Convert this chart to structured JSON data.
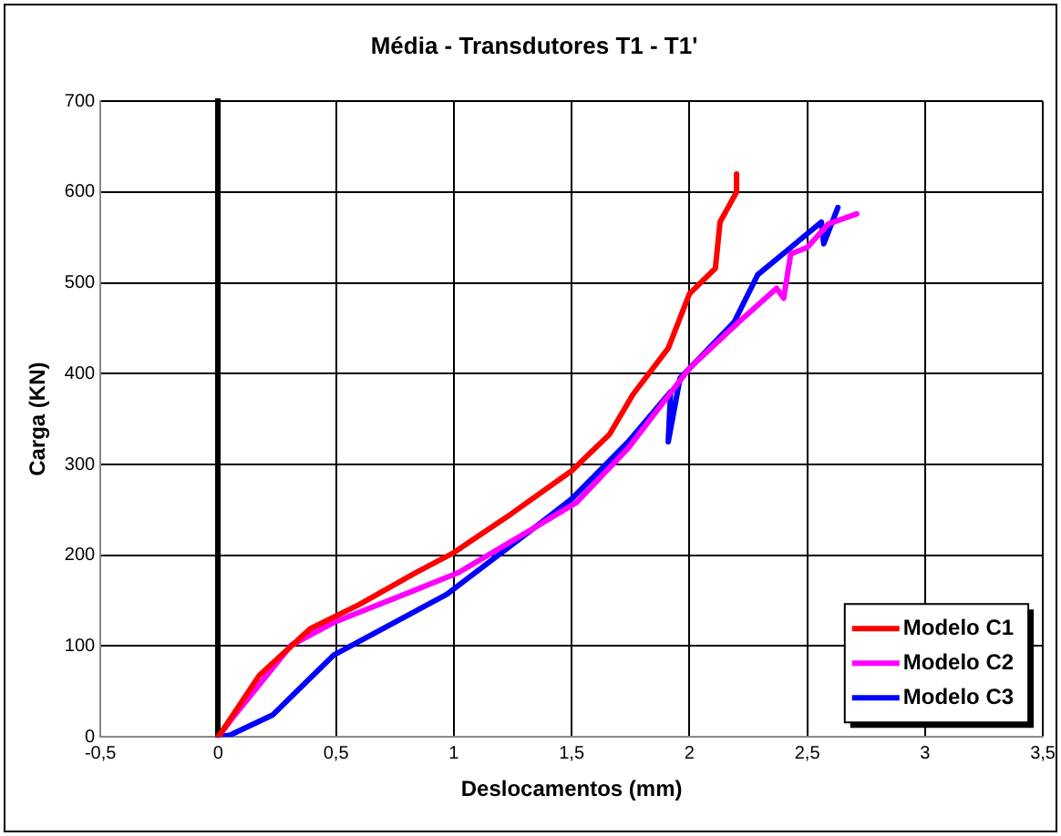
{
  "chart_data": {
    "type": "line",
    "title": "Média - Transdutores T1 - T1'",
    "xlabel": "Deslocamentos (mm)",
    "ylabel": "Carga (KN)",
    "xlim": [
      -0.5,
      3.5
    ],
    "xticks": [
      {
        "value": -0.5,
        "label": "-0,5"
      },
      0,
      {
        "value": 0.5,
        "label": "0,5"
      },
      1,
      {
        "value": 1.5,
        "label": "1,5"
      },
      2,
      {
        "value": 2.5,
        "label": "2,5"
      },
      3,
      {
        "value": 3.5,
        "label": "3,5"
      }
    ],
    "ylim": [
      0,
      700
    ],
    "yticks": [
      0,
      100,
      200,
      300,
      400,
      500,
      600,
      700
    ],
    "grid": true,
    "legend": "bottom right",
    "marker": "none",
    "line_style": "solid",
    "series": [
      {
        "name": "Modelo C1",
        "color": "#ff0000",
        "x": [
          0,
          0.175,
          0.39,
          0.6,
          0.84,
          1.0,
          1.24,
          1.5,
          1.66,
          1.76,
          1.91,
          2.0,
          2.11,
          2.13,
          2.2,
          2.2
        ],
        "values": [
          0,
          68,
          119,
          146,
          181,
          203,
          245,
          293,
          333,
          377,
          428,
          488,
          516,
          567,
          600,
          620
        ]
      },
      {
        "name": "Modelo C2",
        "color": "#ff00ff",
        "x": [
          0,
          0.07,
          0.31,
          0.49,
          0.81,
          1.02,
          1.34,
          1.52,
          1.74,
          2.0,
          2.21,
          2.37,
          2.4,
          2.43,
          2.5,
          2.59,
          2.71
        ],
        "values": [
          0,
          24,
          101,
          126,
          159,
          181,
          230,
          258,
          318,
          406,
          457,
          494,
          483,
          532,
          539,
          565,
          576
        ]
      },
      {
        "name": "Modelo C3",
        "color": "#0000ff",
        "x": [
          0,
          0.05,
          0.23,
          0.49,
          0.97,
          1.34,
          1.5,
          1.74,
          1.92,
          1.91,
          1.96,
          2.19,
          2.29,
          2.43,
          2.56,
          2.57,
          2.63
        ],
        "values": [
          0,
          2,
          24,
          90,
          157,
          230,
          262,
          325,
          380,
          325,
          395,
          457,
          509,
          539,
          567,
          543,
          583
        ]
      }
    ]
  }
}
